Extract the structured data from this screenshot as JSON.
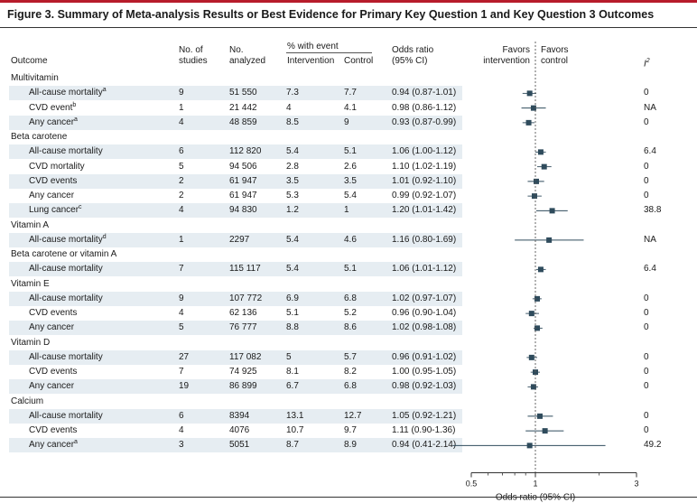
{
  "title": "Figure 3. Summary of Meta-analysis Results or Best Evidence for Primary Key Question 1 and Key Question 3 Outcomes",
  "headers": {
    "outcome": "Outcome",
    "n_studies_1": "No. of",
    "n_studies_2": "studies",
    "n_analyzed_1": "No.",
    "n_analyzed_2": "analyzed",
    "pct_event": "% with event",
    "intervention": "Intervention",
    "control": "Control",
    "or_1": "Odds ratio",
    "or_2": "(95% CI)",
    "favors_left_1": "Favors",
    "favors_left_2": "intervention",
    "favors_right_1": "Favors",
    "favors_right_2": "control",
    "i2": "I",
    "i2_sup": "2"
  },
  "axis": {
    "label": "Odds ratio (95% CI)",
    "ticks": [
      "0.5",
      "1",
      "3"
    ],
    "scale": "log"
  },
  "chart_data": {
    "type": "forest",
    "xlabel": "Odds ratio (95% CI)",
    "xlim": [
      0.5,
      3
    ],
    "xscale": "log",
    "reference_line": 1,
    "rows": [
      {
        "kind": "group",
        "label": "Multivitamin"
      },
      {
        "kind": "item",
        "label": "All-cause mortality",
        "sup": "a",
        "studies": "9",
        "analyzed": "51 550",
        "intervention": "7.3",
        "control": "7.7",
        "or_text": "0.94 (0.87-1.01)",
        "or": 0.94,
        "lo": 0.87,
        "hi": 1.01,
        "i2": "0"
      },
      {
        "kind": "item",
        "label": "CVD event",
        "sup": "b",
        "studies": "1",
        "analyzed": "21 442",
        "intervention": "4",
        "control": "4.1",
        "or_text": "0.98 (0.86-1.12)",
        "or": 0.98,
        "lo": 0.86,
        "hi": 1.12,
        "i2": "NA"
      },
      {
        "kind": "item",
        "label": "Any cancer",
        "sup": "a",
        "studies": "4",
        "analyzed": "48 859",
        "intervention": "8.5",
        "control": "9",
        "or_text": "0.93 (0.87-0.99)",
        "or": 0.93,
        "lo": 0.87,
        "hi": 0.99,
        "i2": "0"
      },
      {
        "kind": "group",
        "label": "Beta carotene"
      },
      {
        "kind": "item",
        "label": "All-cause mortality",
        "sup": "",
        "studies": "6",
        "analyzed": "112 820",
        "intervention": "5.4",
        "control": "5.1",
        "or_text": "1.06 (1.00-1.12)",
        "or": 1.06,
        "lo": 1.0,
        "hi": 1.12,
        "i2": "6.4"
      },
      {
        "kind": "item",
        "label": "CVD mortality",
        "sup": "",
        "studies": "5",
        "analyzed": "94 506",
        "intervention": "2.8",
        "control": "2.6",
        "or_text": "1.10 (1.02-1.19)",
        "or": 1.1,
        "lo": 1.02,
        "hi": 1.19,
        "i2": "0"
      },
      {
        "kind": "item",
        "label": "CVD events",
        "sup": "",
        "studies": "2",
        "analyzed": "61 947",
        "intervention": "3.5",
        "control": "3.5",
        "or_text": "1.01 (0.92-1.10)",
        "or": 1.01,
        "lo": 0.92,
        "hi": 1.1,
        "i2": "0"
      },
      {
        "kind": "item",
        "label": "Any cancer",
        "sup": "",
        "studies": "2",
        "analyzed": "61 947",
        "intervention": "5.3",
        "control": "5.4",
        "or_text": "0.99 (0.92-1.07)",
        "or": 0.99,
        "lo": 0.92,
        "hi": 1.07,
        "i2": "0"
      },
      {
        "kind": "item",
        "label": "Lung cancer",
        "sup": "c",
        "studies": "4",
        "analyzed": "94 830",
        "intervention": "1.2",
        "control": "1",
        "or_text": "1.20 (1.01-1.42)",
        "or": 1.2,
        "lo": 1.01,
        "hi": 1.42,
        "i2": "38.8"
      },
      {
        "kind": "group",
        "label": "Vitamin A"
      },
      {
        "kind": "item",
        "label": "All-cause mortality",
        "sup": "d",
        "studies": "1",
        "analyzed": "2297",
        "intervention": "5.4",
        "control": "4.6",
        "or_text": "1.16 (0.80-1.69)",
        "or": 1.16,
        "lo": 0.8,
        "hi": 1.69,
        "i2": "NA"
      },
      {
        "kind": "group",
        "label": "Beta carotene or vitamin A"
      },
      {
        "kind": "item",
        "label": "All-cause mortality",
        "sup": "",
        "studies": "7",
        "analyzed": "115 117",
        "intervention": "5.4",
        "control": "5.1",
        "or_text": "1.06 (1.01-1.12)",
        "or": 1.06,
        "lo": 1.01,
        "hi": 1.12,
        "i2": "6.4"
      },
      {
        "kind": "group",
        "label": "Vitamin E"
      },
      {
        "kind": "item",
        "label": "All-cause mortality",
        "sup": "",
        "studies": "9",
        "analyzed": "107 772",
        "intervention": "6.9",
        "control": "6.8",
        "or_text": "1.02 (0.97-1.07)",
        "or": 1.02,
        "lo": 0.97,
        "hi": 1.07,
        "i2": "0"
      },
      {
        "kind": "item",
        "label": "CVD events",
        "sup": "",
        "studies": "4",
        "analyzed": "62 136",
        "intervention": "5.1",
        "control": "5.2",
        "or_text": "0.96 (0.90-1.04)",
        "or": 0.96,
        "lo": 0.9,
        "hi": 1.04,
        "i2": "0"
      },
      {
        "kind": "item",
        "label": "Any cancer",
        "sup": "",
        "studies": "5",
        "analyzed": "76 777",
        "intervention": "8.8",
        "control": "8.6",
        "or_text": "1.02 (0.98-1.08)",
        "or": 1.02,
        "lo": 0.98,
        "hi": 1.08,
        "i2": "0"
      },
      {
        "kind": "group",
        "label": "Vitamin D"
      },
      {
        "kind": "item",
        "label": "All-cause mortality",
        "sup": "",
        "studies": "27",
        "analyzed": "117 082",
        "intervention": "5",
        "control": "5.7",
        "or_text": "0.96 (0.91-1.02)",
        "or": 0.96,
        "lo": 0.91,
        "hi": 1.02,
        "i2": "0"
      },
      {
        "kind": "item",
        "label": "CVD events",
        "sup": "",
        "studies": "7",
        "analyzed": "74 925",
        "intervention": "8.1",
        "control": "8.2",
        "or_text": "1.00 (0.95-1.05)",
        "or": 1.0,
        "lo": 0.95,
        "hi": 1.05,
        "i2": "0"
      },
      {
        "kind": "item",
        "label": "Any cancer",
        "sup": "",
        "studies": "19",
        "analyzed": "86 899",
        "intervention": "6.7",
        "control": "6.8",
        "or_text": "0.98 (0.92-1.03)",
        "or": 0.98,
        "lo": 0.92,
        "hi": 1.03,
        "i2": "0"
      },
      {
        "kind": "group",
        "label": "Calcium"
      },
      {
        "kind": "item",
        "label": "All-cause mortality",
        "sup": "",
        "studies": "6",
        "analyzed": "8394",
        "intervention": "13.1",
        "control": "12.7",
        "or_text": "1.05 (0.92-1.21)",
        "or": 1.05,
        "lo": 0.92,
        "hi": 1.21,
        "i2": "0"
      },
      {
        "kind": "item",
        "label": "CVD events",
        "sup": "",
        "studies": "4",
        "analyzed": "4076",
        "intervention": "10.7",
        "control": "9.7",
        "or_text": "1.11 (0.90-1.36)",
        "or": 1.11,
        "lo": 0.9,
        "hi": 1.36,
        "i2": "0"
      },
      {
        "kind": "item",
        "label": "Any cancer",
        "sup": "a",
        "studies": "3",
        "analyzed": "5051",
        "intervention": "8.7",
        "control": "8.9",
        "or_text": "0.94 (0.41-2.14)",
        "or": 0.94,
        "lo": 0.41,
        "hi": 2.14,
        "i2": "49.2"
      }
    ]
  },
  "colors": {
    "accent_bar": "#b71c2b",
    "stripe": "#e6edf2",
    "marker": "#2f4b5c"
  }
}
